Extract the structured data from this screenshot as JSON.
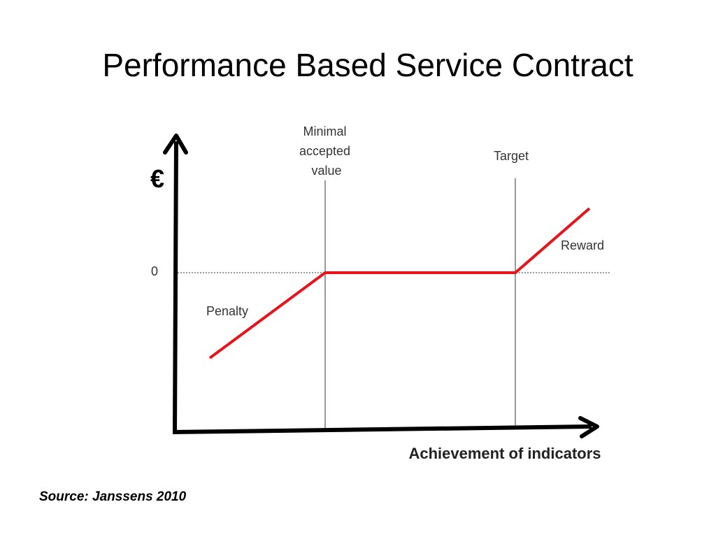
{
  "slide": {
    "title": "Performance Based Service Contract",
    "source": "Source: Janssens 2010"
  },
  "diagram": {
    "y_axis_symbol": "€",
    "x_axis_label": "Achievement of indicators",
    "zero_label": "0",
    "minimal_line_label": [
      "Minimal",
      "accepted",
      "value"
    ],
    "target_label": "Target",
    "penalty_label": "Penalty",
    "reward_label": "Reward",
    "payoff_color": "#e8141b"
  }
}
